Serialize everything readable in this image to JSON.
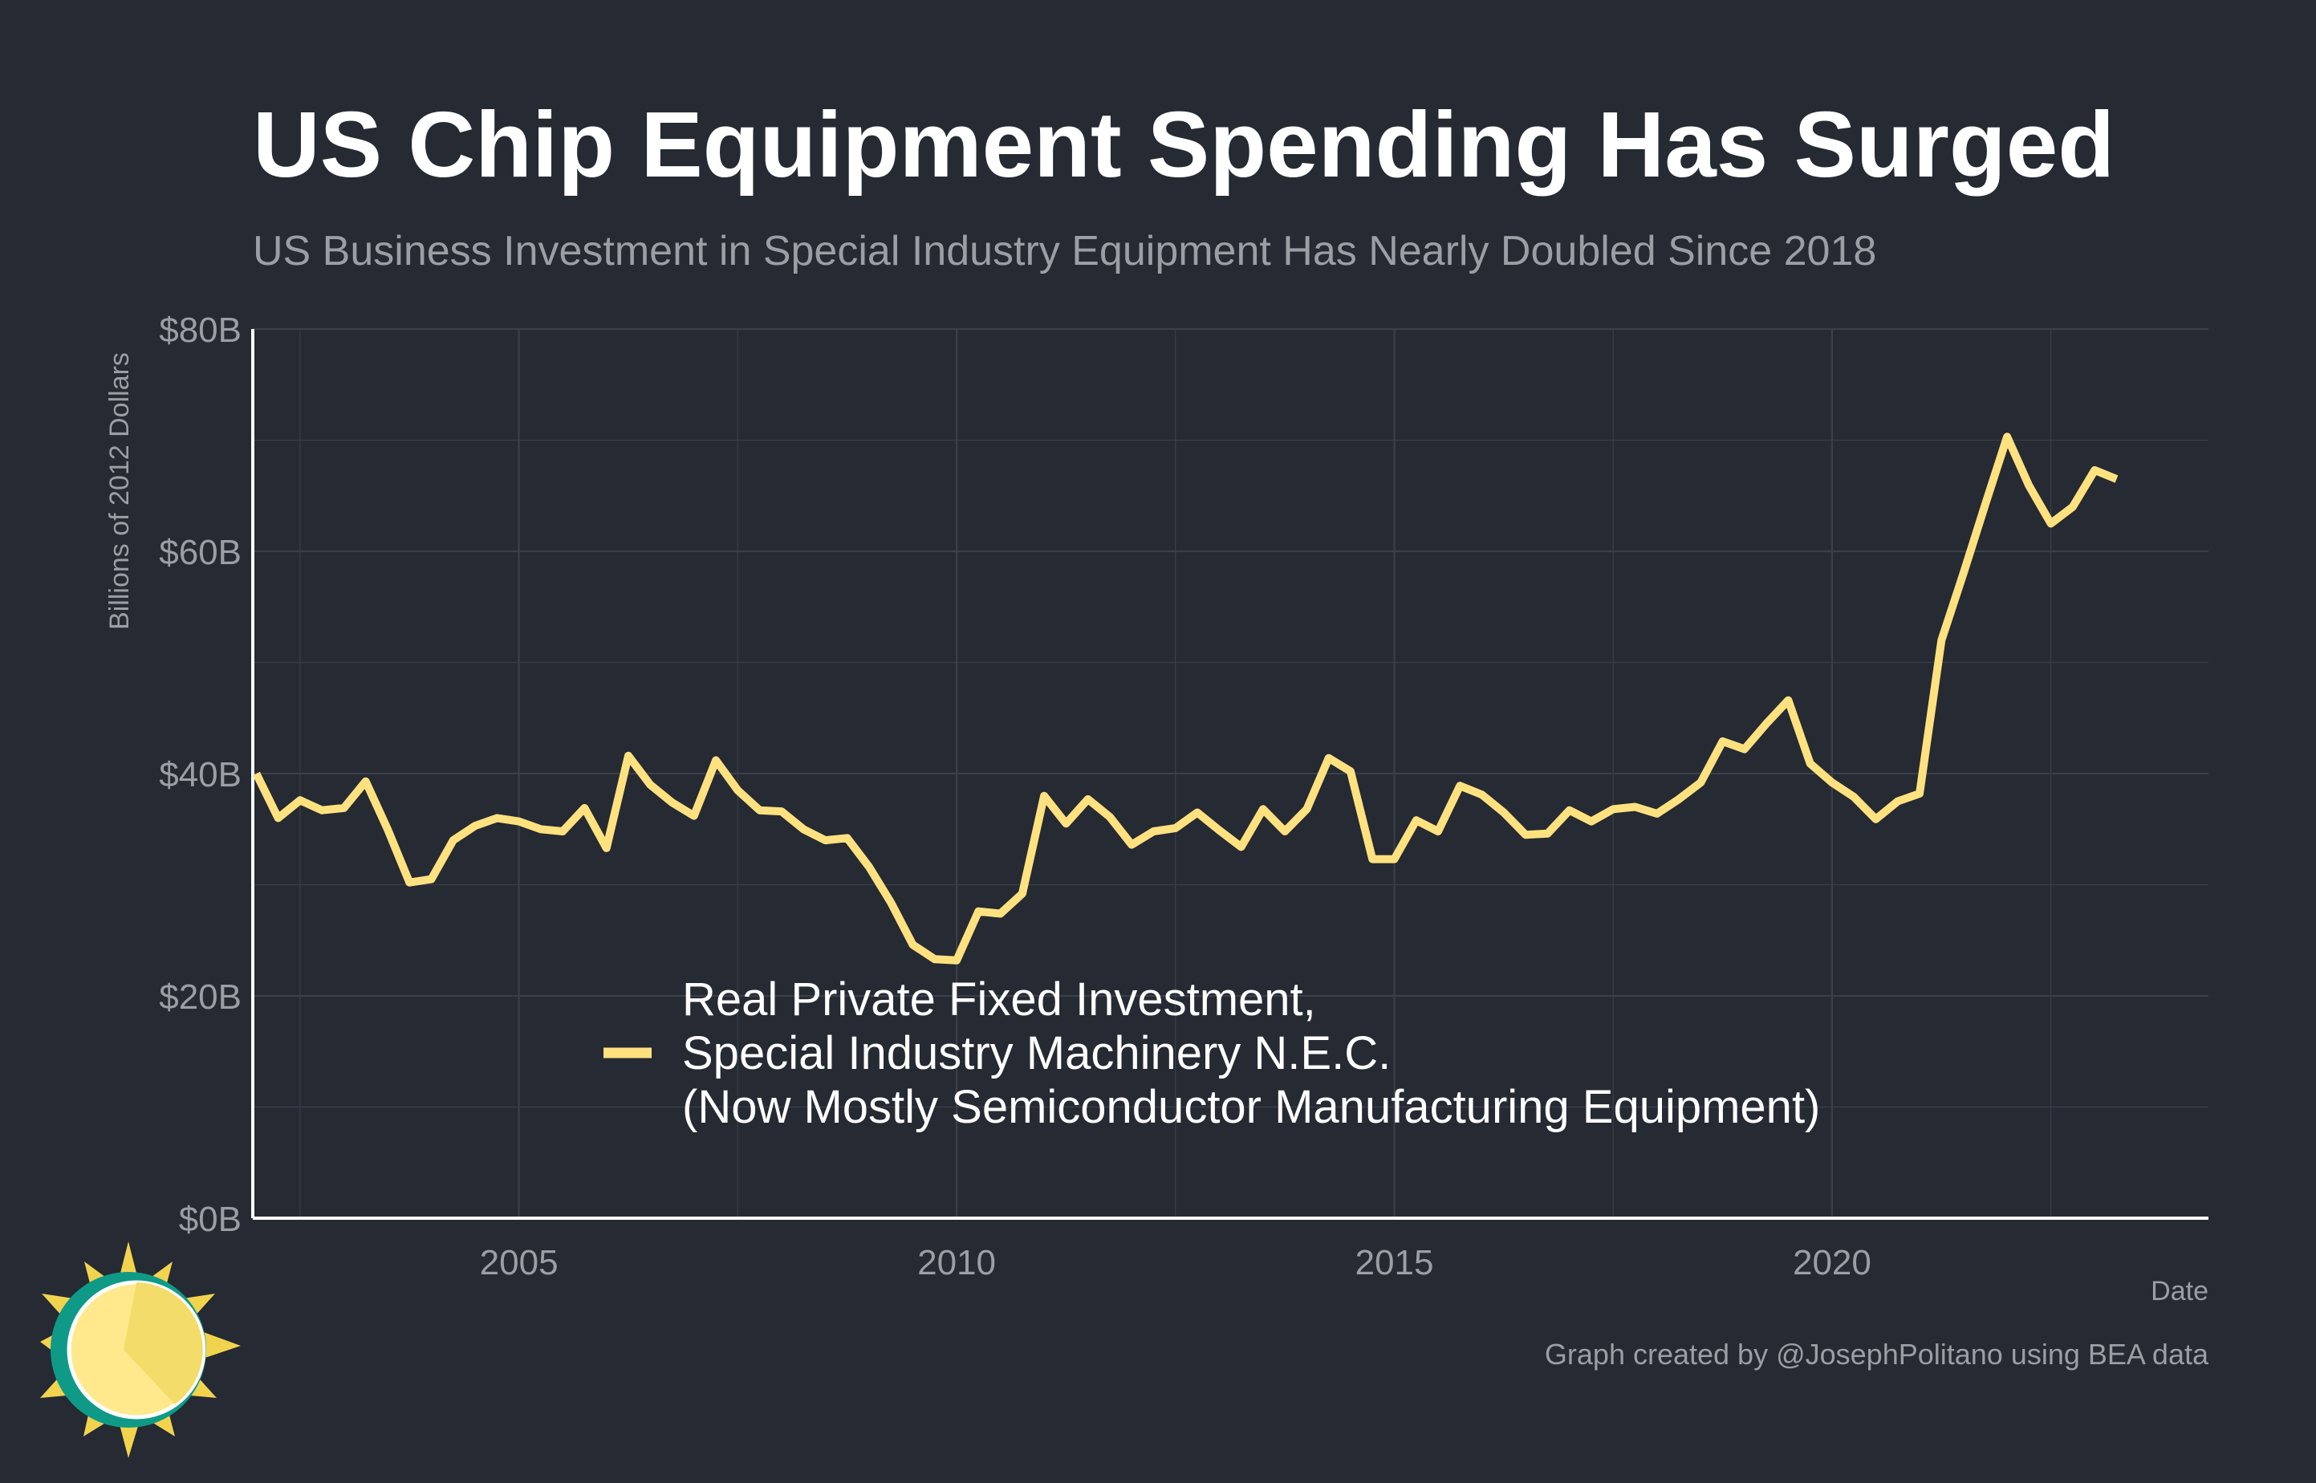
{
  "header": {
    "title": "US Chip Equipment Spending Has Surged",
    "subtitle": "US Business Investment in Special Industry Equipment Has Nearly Doubled Since 2018"
  },
  "footer": {
    "caption": "Graph created by @JosephPolitano using BEA data"
  },
  "colors": {
    "background": "#252a33",
    "line": "#ffe17f",
    "grid": "#3a3f48",
    "axis": "#ffffff",
    "text_muted": "#9b9ea4"
  },
  "chart_data": {
    "type": "line",
    "title": "US Chip Equipment Spending Has Surged",
    "subtitle": "US Business Investment in Special Industry Equipment Has Nearly Doubled Since 2018",
    "xlabel": "Date",
    "ylabel": "Billions of 2012 Dollars",
    "ylim": [
      0,
      80
    ],
    "xlim": [
      2001.96,
      2024.3
    ],
    "y_ticks": [
      0,
      20,
      40,
      60,
      80
    ],
    "y_tick_labels": [
      "$0B",
      "$20B",
      "$40B",
      "$60B",
      "$80B"
    ],
    "x_ticks": [
      2005,
      2010,
      2015,
      2020
    ],
    "x_tick_labels": [
      "2005",
      "2010",
      "2015",
      "2020"
    ],
    "grid": true,
    "legend": {
      "placement": "bottom-center",
      "lines": [
        "Real Private Fixed Investment,",
        "Special Industry Machinery N.E.C.",
        "(Now Mostly Semiconductor Manufacturing Equipment)"
      ]
    },
    "series": [
      {
        "color": "#ffe17f",
        "x": [
          2002.0,
          2002.25,
          2002.5,
          2002.75,
          2003.0,
          2003.25,
          2003.5,
          2003.75,
          2004.0,
          2004.25,
          2004.5,
          2004.75,
          2005.0,
          2005.25,
          2005.5,
          2005.75,
          2006.0,
          2006.25,
          2006.5,
          2006.75,
          2007.0,
          2007.25,
          2007.5,
          2007.75,
          2008.0,
          2008.25,
          2008.5,
          2008.75,
          2009.0,
          2009.25,
          2009.5,
          2009.75,
          2010.0,
          2010.25,
          2010.5,
          2010.75,
          2011.0,
          2011.25,
          2011.5,
          2011.75,
          2012.0,
          2012.25,
          2012.5,
          2012.75,
          2013.0,
          2013.25,
          2013.5,
          2013.75,
          2014.0,
          2014.25,
          2014.5,
          2014.75,
          2015.0,
          2015.25,
          2015.5,
          2015.75,
          2016.0,
          2016.25,
          2016.5,
          2016.75,
          2017.0,
          2017.25,
          2017.5,
          2017.75,
          2018.0,
          2018.25,
          2018.5,
          2018.75,
          2019.0,
          2019.25,
          2019.5,
          2019.75,
          2020.0,
          2020.25,
          2020.5,
          2020.75,
          2021.0,
          2021.25,
          2021.5,
          2021.75,
          2022.0,
          2022.25,
          2022.5,
          2022.75,
          2023.0,
          2023.25
        ],
        "values": [
          40.0,
          36.0,
          37.6,
          36.7,
          36.9,
          39.3,
          35.0,
          30.2,
          30.5,
          34.0,
          35.3,
          36.0,
          35.7,
          35.0,
          34.8,
          36.9,
          33.3,
          41.6,
          39.0,
          37.4,
          36.2,
          41.2,
          38.5,
          36.7,
          36.6,
          35.0,
          34.0,
          34.2,
          31.6,
          28.4,
          24.6,
          23.3,
          23.2,
          27.6,
          27.4,
          29.2,
          38.0,
          35.5,
          37.7,
          36.1,
          33.6,
          34.8,
          35.1,
          36.5,
          34.9,
          33.4,
          36.8,
          34.8,
          36.8,
          41.4,
          40.2,
          32.3,
          32.3,
          35.8,
          34.8,
          38.9,
          38.1,
          36.5,
          34.5,
          34.6,
          36.7,
          35.7,
          36.8,
          37.0,
          36.4,
          37.7,
          39.2,
          42.9,
          42.2,
          44.5,
          46.6,
          40.9,
          39.2,
          37.9,
          35.9,
          37.5,
          38.2,
          52.0,
          58.0,
          64.2,
          70.3,
          65.9,
          62.5,
          64.0,
          67.3,
          66.5
        ]
      }
    ]
  }
}
